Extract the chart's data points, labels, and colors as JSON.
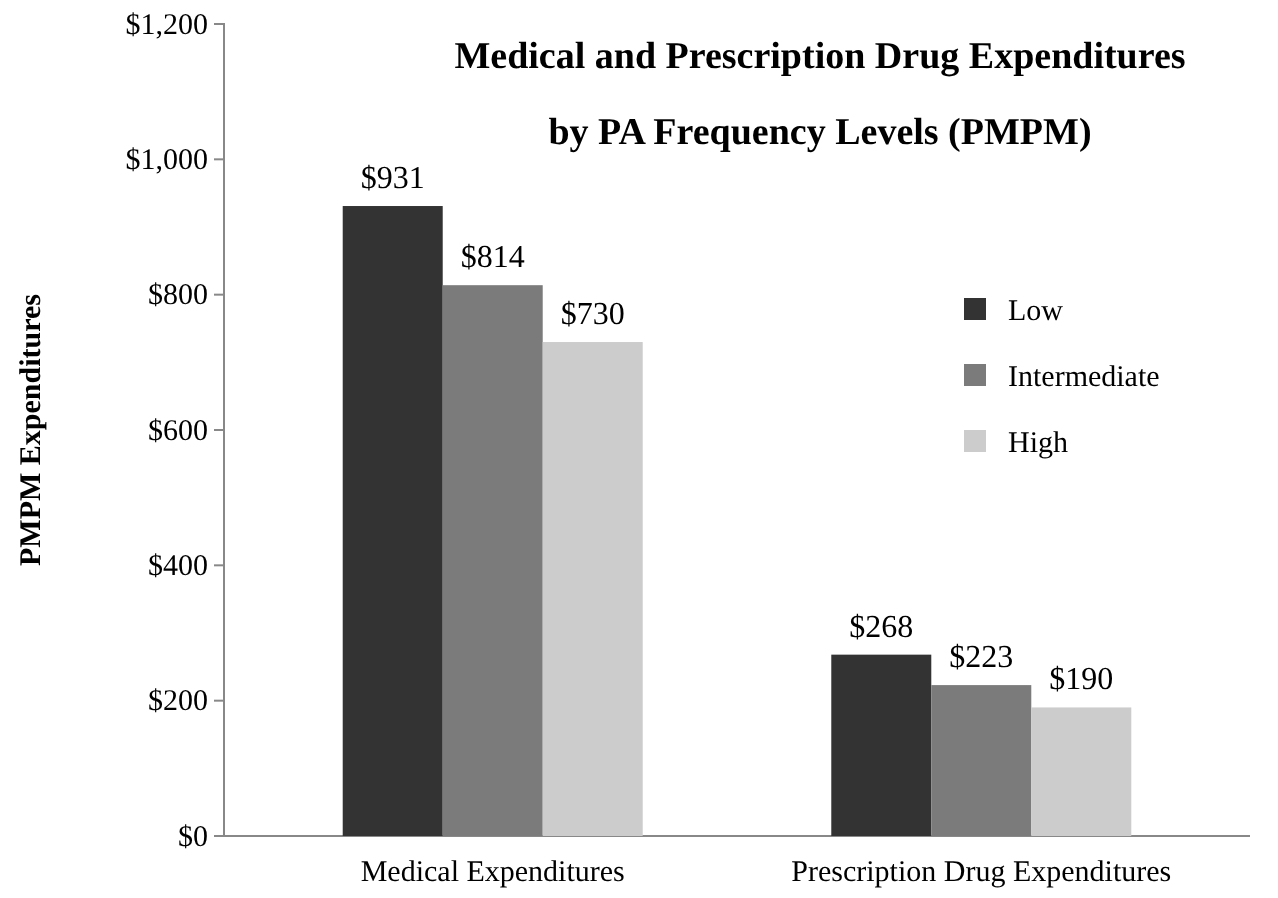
{
  "chart_data": {
    "type": "bar",
    "title": "Medical and Prescription Drug Expenditures",
    "subtitle": "by PA Frequency Levels (PMPM)",
    "ylabel": "PMPM Expenditures",
    "categories": [
      "Medical Expenditures",
      "Prescription Drug Expenditures"
    ],
    "series": [
      {
        "name": "Low",
        "color": "#333333",
        "values": [
          931,
          268
        ],
        "value_labels": [
          "$931",
          "$268"
        ]
      },
      {
        "name": "Intermediate",
        "color": "#7b7b7b",
        "values": [
          814,
          223
        ],
        "value_labels": [
          "$814",
          "$223"
        ]
      },
      {
        "name": "High",
        "color": "#cccccc",
        "values": [
          730,
          190
        ],
        "value_labels": [
          "$730",
          "$190"
        ]
      }
    ],
    "ylim": [
      0,
      1200
    ],
    "yticks": [
      {
        "value": 0,
        "label": "$0"
      },
      {
        "value": 200,
        "label": "$200"
      },
      {
        "value": 400,
        "label": "$400"
      },
      {
        "value": 600,
        "label": "$600"
      },
      {
        "value": 800,
        "label": "$800"
      },
      {
        "value": 1000,
        "label": "$1,000"
      },
      {
        "value": 1200,
        "label": "$1,200"
      }
    ],
    "grid": false,
    "legend": "top right"
  }
}
